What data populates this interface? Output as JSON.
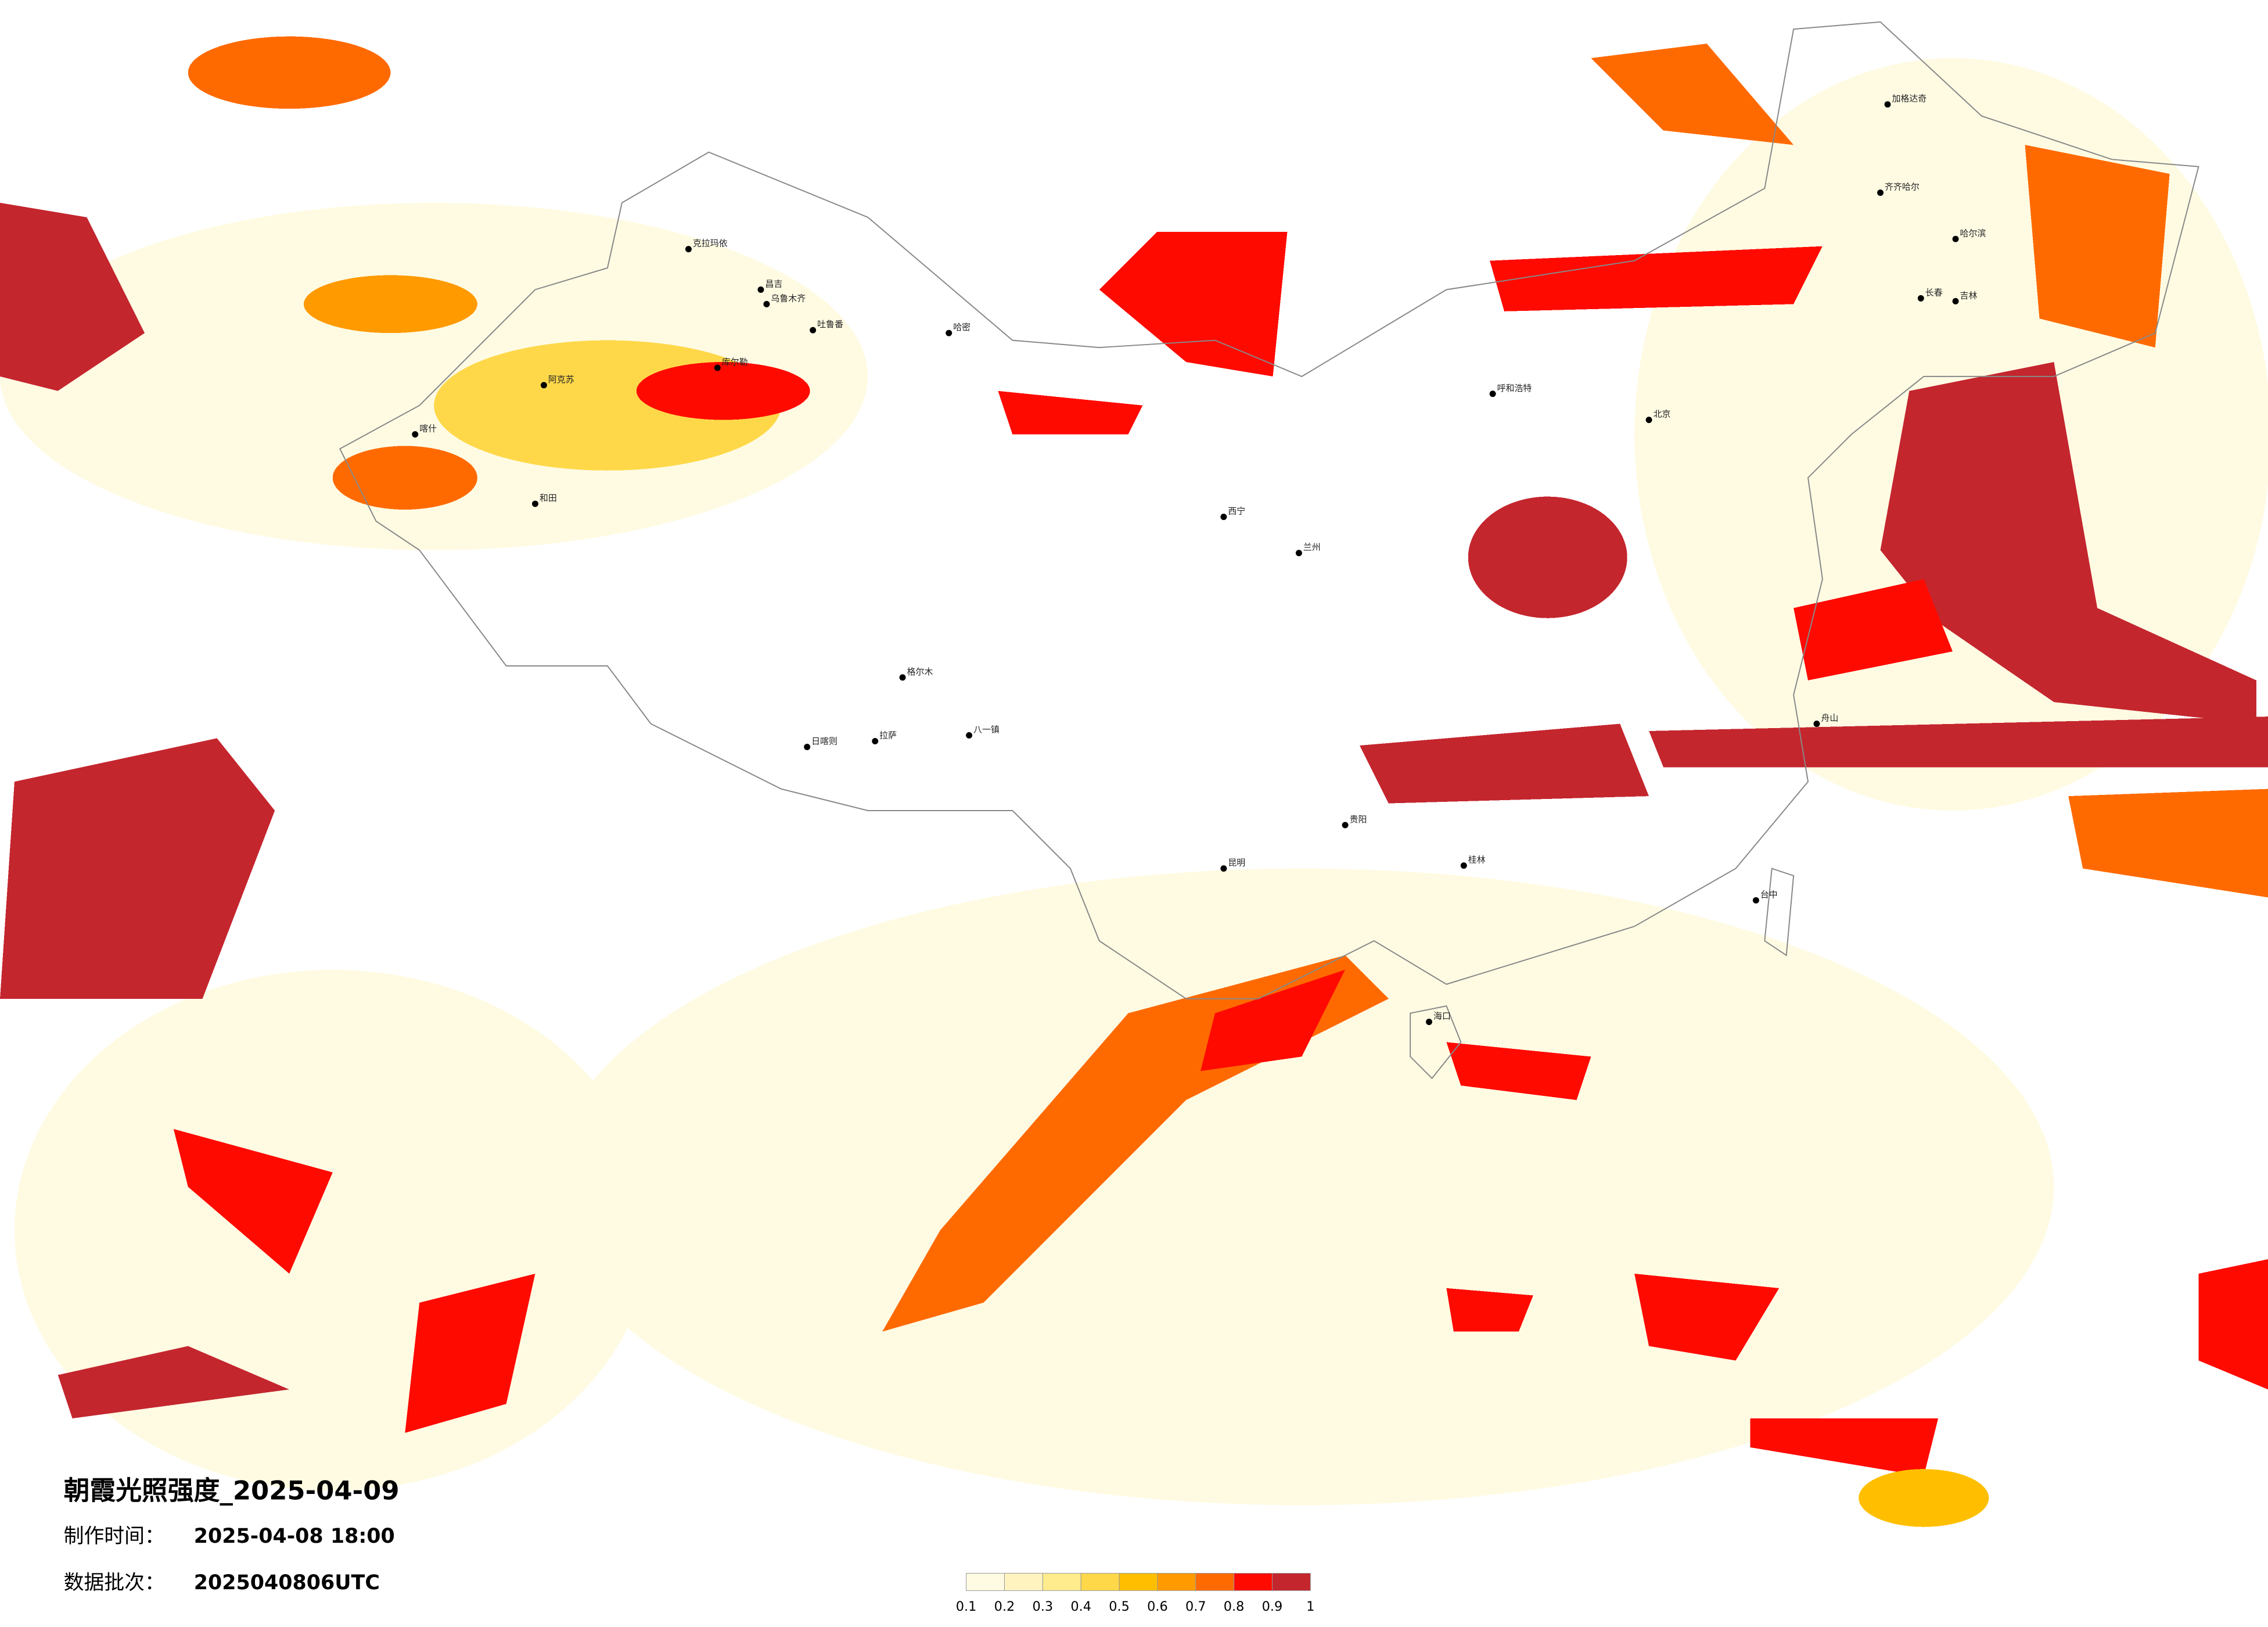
{
  "title": "朝霞光照强度_2025-04-09",
  "info": [
    {
      "label": "制作时间：",
      "value": "2025-04-08 18:00"
    },
    {
      "label": "数据批次：",
      "value": "2025040806UTC"
    }
  ],
  "legend": {
    "colors": [
      "#fffbe3",
      "#fff4bf",
      "#ffec8c",
      "#ffd84a",
      "#ffbf00",
      "#ff9a00",
      "#ff6a00",
      "#ff0a00",
      "#c4262e"
    ],
    "ticks": [
      0.1,
      0.2,
      0.3,
      0.4,
      0.5,
      0.6,
      0.7,
      0.8,
      0.9,
      1
    ]
  },
  "cities": [
    "克拉玛依",
    "昌吉",
    "乌鲁木齐",
    "吐鲁番",
    "哈密",
    "库尔勒",
    "阿克苏",
    "喀什",
    "和田",
    "格尔木",
    "拉萨",
    "日喀则",
    "八一镇",
    "呼和浩特",
    "北京",
    "哈尔滨",
    "长春",
    "吉林",
    "齐齐哈尔",
    "加格达奇",
    "昆明",
    "贵阳",
    "桂林",
    "海口",
    "台中",
    "舟山",
    "西宁",
    "兰州"
  ]
}
